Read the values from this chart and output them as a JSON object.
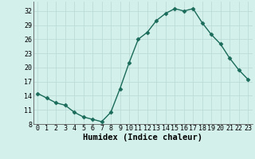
{
  "xlabel": "Humidex (Indice chaleur)",
  "x": [
    0,
    1,
    2,
    3,
    4,
    5,
    6,
    7,
    8,
    9,
    10,
    11,
    12,
    13,
    14,
    15,
    16,
    17,
    18,
    19,
    20,
    21,
    22,
    23
  ],
  "y": [
    14.5,
    13.5,
    12.5,
    12.0,
    10.5,
    9.5,
    9.0,
    8.5,
    10.5,
    15.5,
    21.0,
    26.0,
    27.5,
    30.0,
    31.5,
    32.5,
    32.0,
    32.5,
    29.5,
    27.0,
    25.0,
    22.0,
    19.5,
    17.5
  ],
  "line_color": "#1a6b5a",
  "marker": "D",
  "marker_size": 2.5,
  "line_width": 1.0,
  "bg_color": "#d4f0eb",
  "grid_color": "#b8d8d4",
  "ylim": [
    8,
    34
  ],
  "yticks": [
    8,
    11,
    14,
    17,
    20,
    23,
    26,
    29,
    32
  ],
  "xticks": [
    0,
    1,
    2,
    3,
    4,
    5,
    6,
    7,
    8,
    9,
    10,
    11,
    12,
    13,
    14,
    15,
    16,
    17,
    18,
    19,
    20,
    21,
    22,
    23
  ],
  "xlabel_fontsize": 7.5,
  "tick_fontsize": 6.0
}
